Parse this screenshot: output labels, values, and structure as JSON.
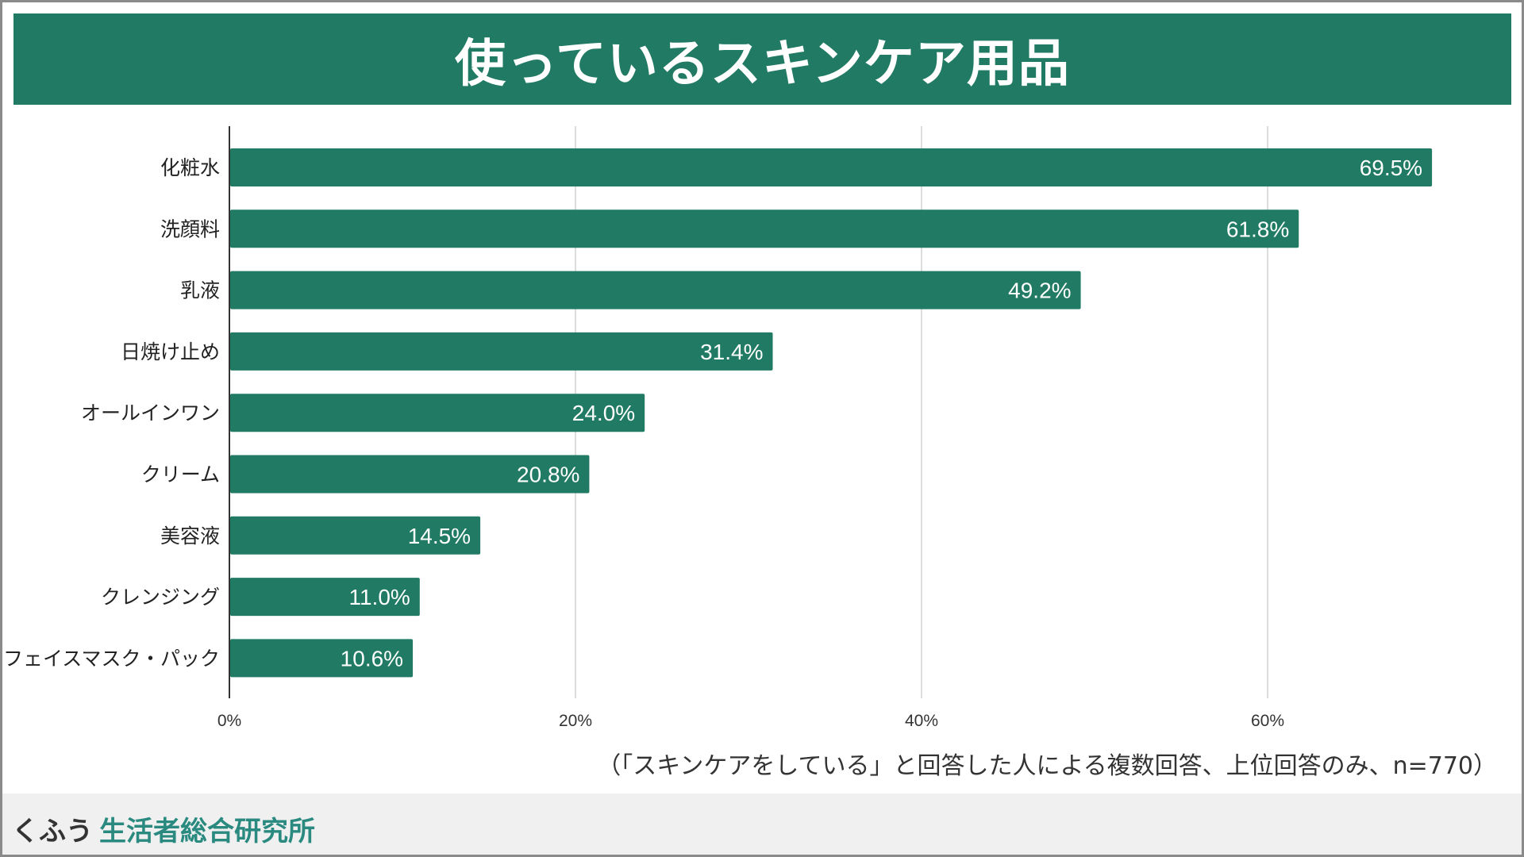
{
  "colors": {
    "accent": "#217a63",
    "grid": "#d0d0d0",
    "footer_bg": "#f0f0f0",
    "brand_teal": "#2a8a80"
  },
  "header": {
    "title": "使っているスキンケア用品"
  },
  "chart_data": {
    "type": "bar",
    "orientation": "horizontal",
    "title": "使っているスキンケア用品",
    "categories": [
      "化粧水",
      "洗顔料",
      "乳液",
      "日焼け止め",
      "オールインワン",
      "クリーム",
      "美容液",
      "クレンジング",
      "フェイスマスク・パック"
    ],
    "values": [
      69.5,
      61.8,
      49.2,
      31.4,
      24.0,
      20.8,
      14.5,
      11.0,
      10.6
    ],
    "value_labels": [
      "69.5%",
      "61.8%",
      "49.2%",
      "31.4%",
      "24.0%",
      "20.8%",
      "14.5%",
      "11.0%",
      "10.6%"
    ],
    "xlim": [
      0,
      74
    ],
    "xticks": [
      0,
      20,
      40,
      60
    ],
    "xtick_labels": [
      "0%",
      "20%",
      "40%",
      "60%"
    ],
    "xlabel": "",
    "ylabel": "",
    "grid": true
  },
  "footnote": "（「スキンケアをしている」と回答した人による複数回答、上位回答のみ、n=770）",
  "brand": {
    "prefix": "くふう",
    "name": "生活者総合研究所"
  }
}
